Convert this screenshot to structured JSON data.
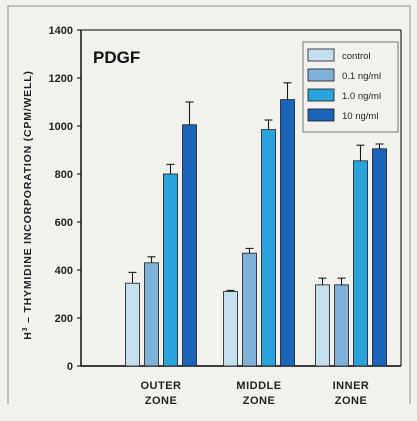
{
  "chart_data": {
    "type": "bar",
    "title": "PDGF",
    "ylabel_main": "H",
    "ylabel_sup": "3",
    "ylabel_rest": " – THYMIDINE INCORPORATION (CPM/WELL)",
    "ylim": [
      0,
      1400
    ],
    "yticks": [
      "0",
      "200",
      "400",
      "600",
      "800",
      "1000",
      "1200",
      "1400"
    ],
    "categories": [
      {
        "line1": "OUTER",
        "line2": "ZONE"
      },
      {
        "line1": "MIDDLE",
        "line2": "ZONE"
      },
      {
        "line1": "INNER",
        "line2": "ZONE"
      }
    ],
    "series": [
      {
        "name": "control",
        "color": "#c4e0ec",
        "values": [
          345,
          310,
          338
        ],
        "errors": [
          45,
          5,
          28
        ]
      },
      {
        "name": "0.1 ng/ml",
        "color": "#7fb2d9",
        "values": [
          430,
          470,
          338
        ],
        "errors": [
          25,
          20,
          28
        ]
      },
      {
        "name": "1.0 ng/ml",
        "color": "#2aa3dc",
        "values": [
          800,
          985,
          855
        ],
        "errors": [
          40,
          40,
          65
        ]
      },
      {
        "name": "10 ng/ml",
        "color": "#1b64b8",
        "values": [
          1005,
          1110,
          905
        ],
        "errors": [
          95,
          70,
          20
        ]
      }
    ],
    "grid": false,
    "legend_position": "top-right"
  }
}
